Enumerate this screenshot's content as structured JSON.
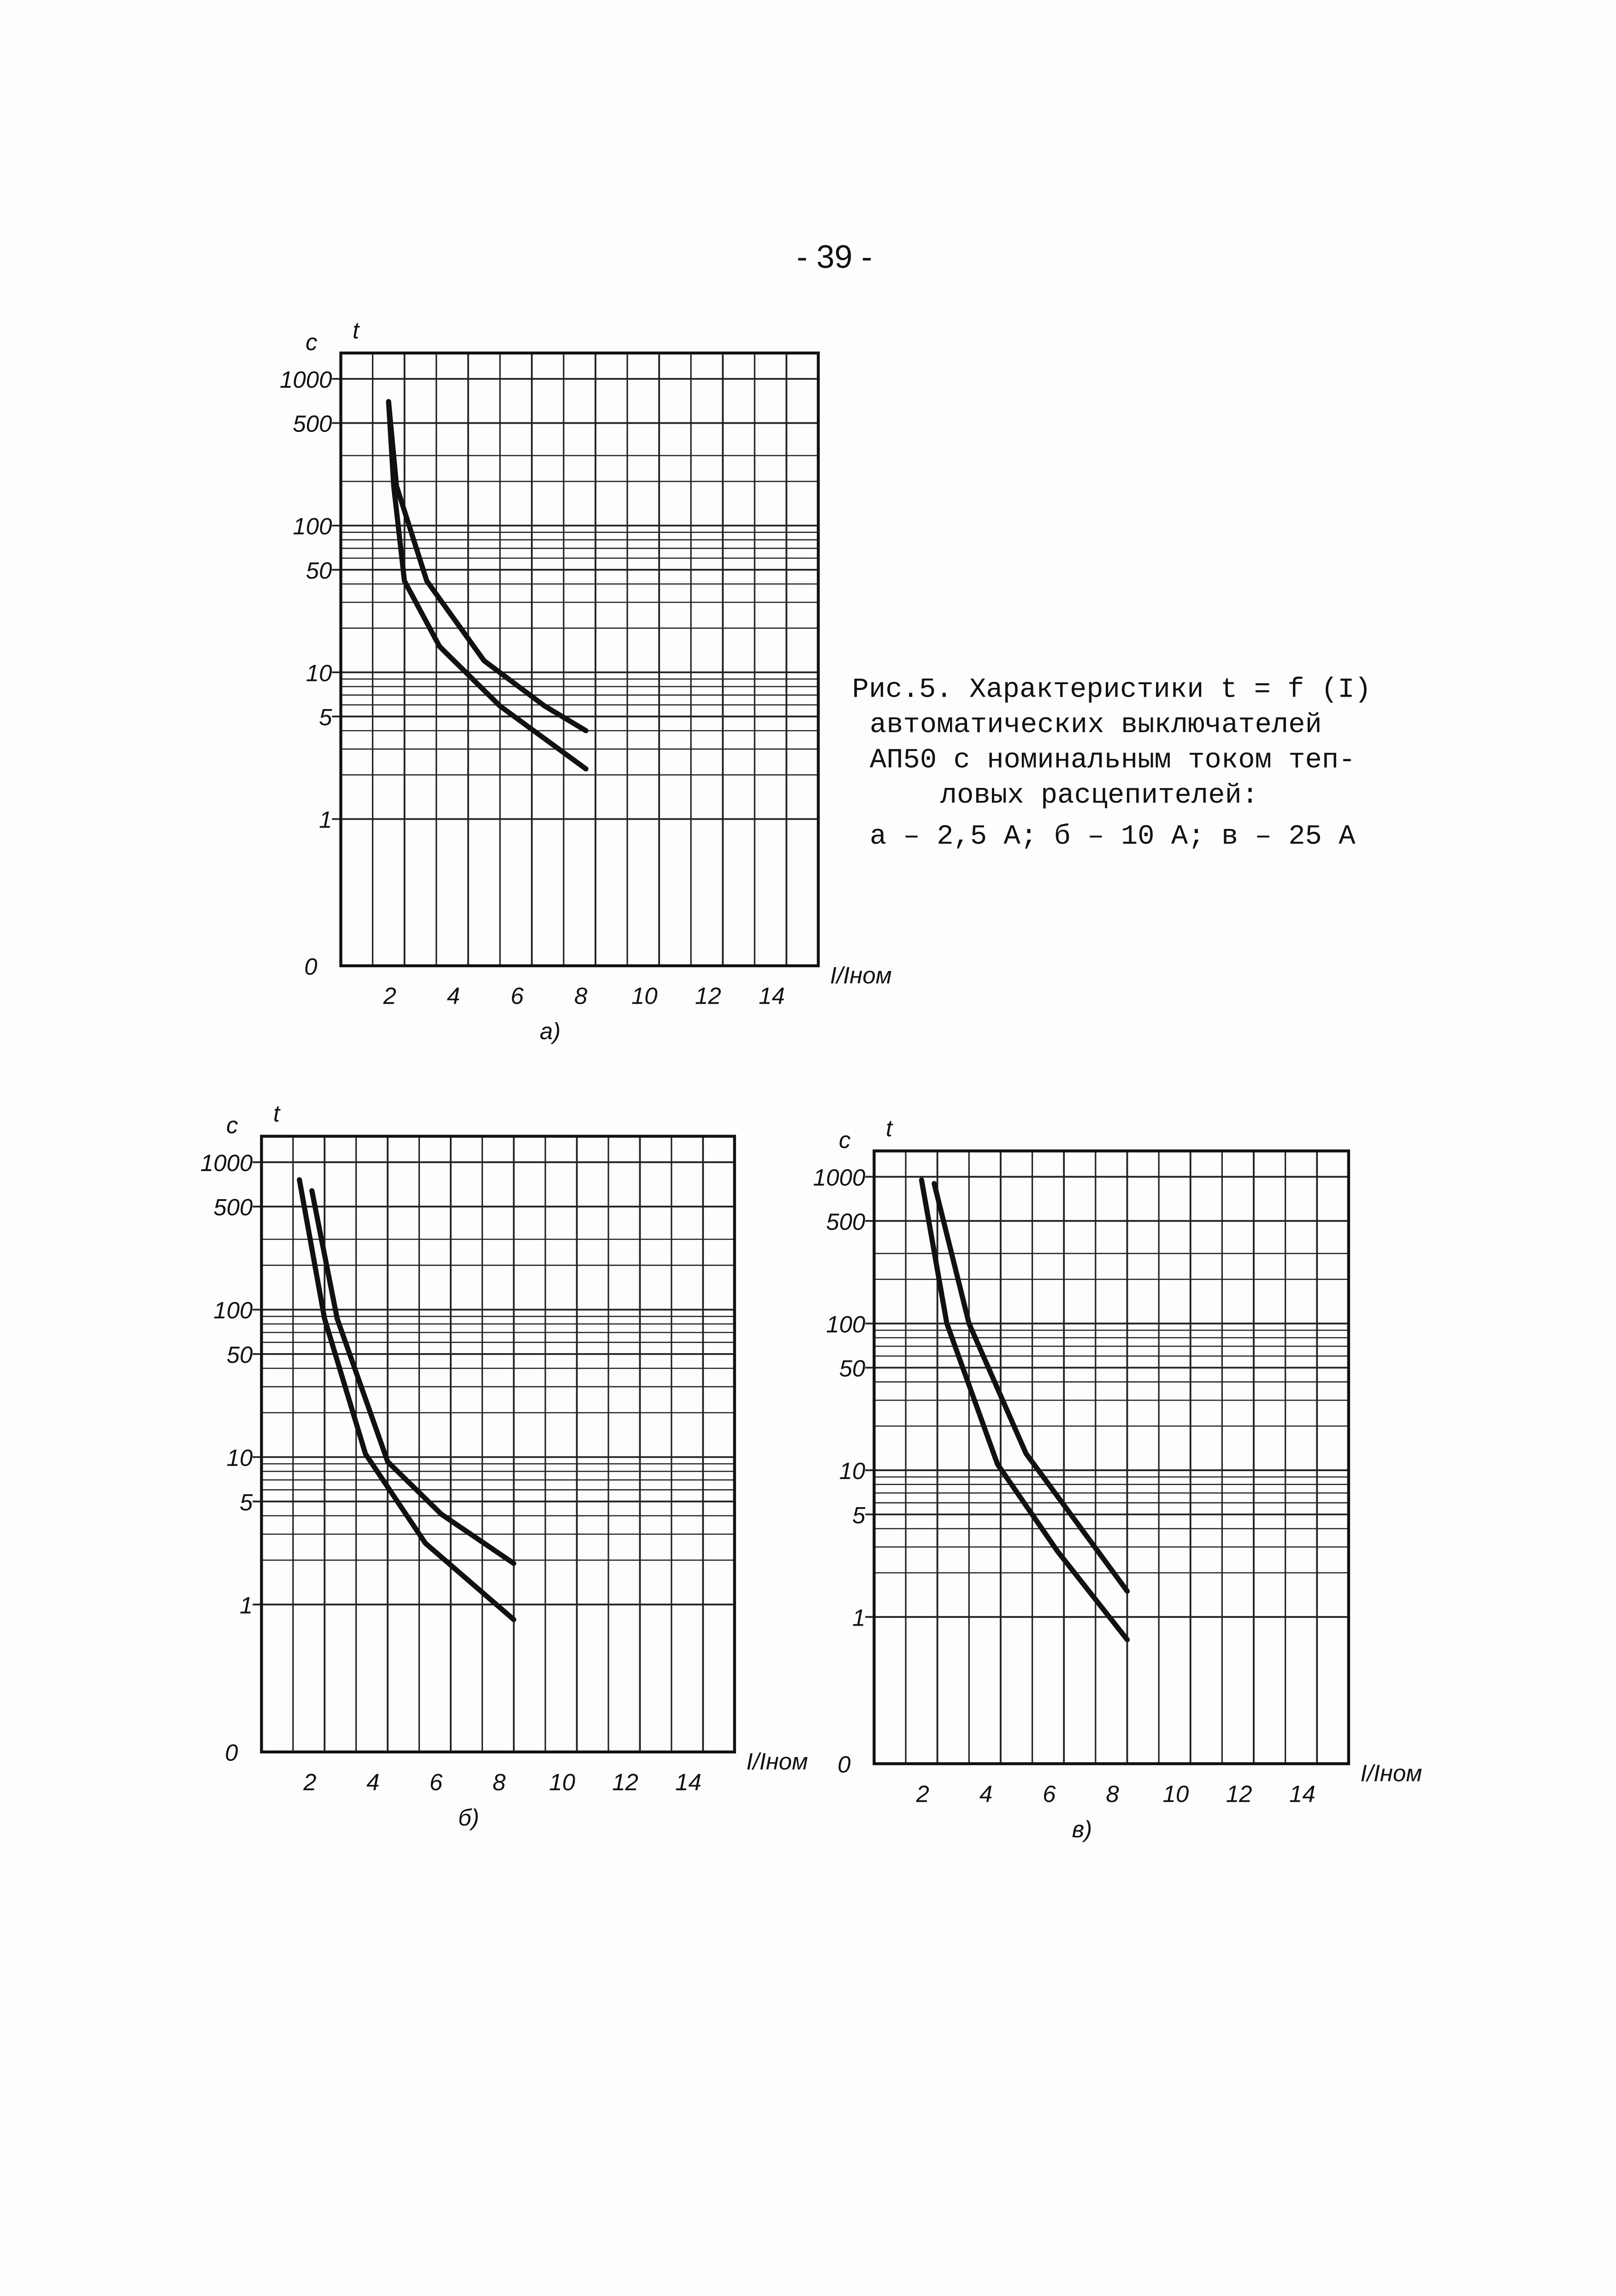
{
  "page_number": "- 39 -",
  "caption": [
    "Рис.5. Характеристики t = f (I)",
    "автоматических выключателей",
    "АП50 с номинальным током теп-",
    "ловых расцепителей:",
    "а – 2,5 А; б – 10 А; в – 25 А"
  ],
  "chart_data": [
    {
      "type": "line",
      "label": "а)",
      "ylabel": "t",
      "yunit": "c",
      "xlabel": "I/Iном",
      "y_origin_label": "0",
      "ylog": true,
      "color": "#111111",
      "xlim": [
        0,
        15
      ],
      "ylim": [
        0.1,
        1500
      ],
      "xticks": [
        2,
        4,
        6,
        8,
        10,
        12,
        14
      ],
      "xminor": [
        1,
        3,
        5,
        7,
        9,
        11,
        13,
        15
      ],
      "yticks": [
        1,
        5,
        10,
        50,
        100,
        500,
        1000
      ],
      "yminor": [
        2,
        3,
        4,
        6,
        7,
        8,
        9,
        20,
        30,
        40,
        60,
        70,
        80,
        90,
        200,
        300
      ],
      "series": [
        {
          "x": [
            1.5,
            1.75,
            2.7,
            4.5,
            6.4,
            7.7
          ],
          "values": [
            700,
            186,
            42,
            12,
            5.9,
            4
          ]
        },
        {
          "x": [
            1.5,
            1.66,
            2,
            3.1,
            5,
            7.7
          ],
          "values": [
            700,
            186,
            42,
            15,
            5.9,
            2.2
          ]
        }
      ]
    },
    {
      "type": "line",
      "label": "б)",
      "ylabel": "t",
      "yunit": "c",
      "xlabel": "I/Iном",
      "y_origin_label": "0",
      "ylog": true,
      "color": "#111111",
      "xlim": [
        0,
        15
      ],
      "ylim": [
        0.1,
        1500
      ],
      "xticks": [
        2,
        4,
        6,
        8,
        10,
        12,
        14
      ],
      "xminor": [
        1,
        3,
        5,
        7,
        9,
        11,
        13,
        15
      ],
      "yticks": [
        1,
        5,
        10,
        50,
        100,
        500,
        1000
      ],
      "yminor": [
        2,
        3,
        4,
        6,
        7,
        8,
        9,
        20,
        30,
        40,
        60,
        70,
        80,
        90,
        200,
        300
      ],
      "series": [
        {
          "x": [
            1.6,
            2.4,
            4,
            5.7,
            8
          ],
          "values": [
            640,
            87,
            9.3,
            4.1,
            1.9
          ]
        },
        {
          "x": [
            1.2,
            2,
            3.3,
            5.2,
            8
          ],
          "values": [
            760,
            87,
            10.5,
            2.6,
            0.79
          ]
        }
      ]
    },
    {
      "type": "line",
      "label": "в)",
      "ylabel": "t",
      "yunit": "c",
      "xlabel": "I/Iном",
      "y_origin_label": "0",
      "ylog": true,
      "color": "#111111",
      "xlim": [
        0,
        15
      ],
      "ylim": [
        0.1,
        1500
      ],
      "xticks": [
        2,
        4,
        6,
        8,
        10,
        12,
        14
      ],
      "xminor": [
        1,
        3,
        5,
        7,
        9,
        11,
        13,
        15
      ],
      "yticks": [
        1,
        5,
        10,
        50,
        100,
        500,
        1000
      ],
      "yminor": [
        2,
        3,
        4,
        6,
        7,
        8,
        9,
        20,
        30,
        40,
        60,
        70,
        80,
        90,
        200,
        300
      ],
      "series": [
        {
          "x": [
            1.9,
            3,
            4.8,
            8
          ],
          "values": [
            900,
            100,
            13,
            1.5
          ]
        },
        {
          "x": [
            1.5,
            2.3,
            3.9,
            5.8,
            8
          ],
          "values": [
            950,
            100,
            11,
            2.8,
            0.7
          ]
        }
      ]
    }
  ]
}
